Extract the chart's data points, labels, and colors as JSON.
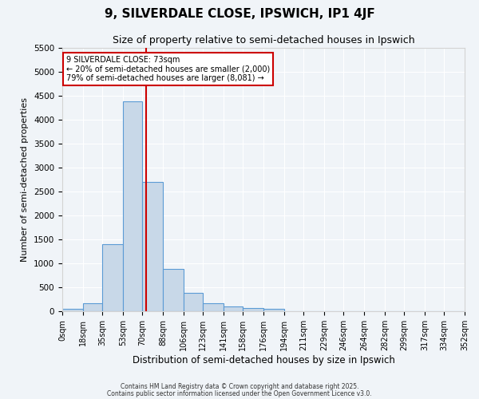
{
  "title1": "9, SILVERDALE CLOSE, IPSWICH, IP1 4JF",
  "title2": "Size of property relative to semi-detached houses in Ipswich",
  "xlabel": "Distribution of semi-detached houses by size in Ipswich",
  "ylabel": "Number of semi-detached properties",
  "bar_values": [
    50,
    160,
    1400,
    4380,
    2700,
    880,
    390,
    170,
    100,
    70,
    50,
    0,
    0,
    0,
    0,
    0,
    0,
    0,
    0,
    0
  ],
  "bin_edges": [
    0,
    18,
    35,
    53,
    70,
    88,
    106,
    123,
    141,
    158,
    176,
    194,
    211,
    229,
    246,
    264,
    282,
    299,
    317,
    334,
    352
  ],
  "tick_labels": [
    "0sqm",
    "18sqm",
    "35sqm",
    "53sqm",
    "70sqm",
    "88sqm",
    "106sqm",
    "123sqm",
    "141sqm",
    "158sqm",
    "176sqm",
    "194sqm",
    "211sqm",
    "229sqm",
    "246sqm",
    "264sqm",
    "282sqm",
    "299sqm",
    "317sqm",
    "334sqm",
    "352sqm"
  ],
  "property_size": 73,
  "bar_color": "#c8d8e8",
  "bar_edge_color": "#5b9bd5",
  "red_line_color": "#cc0000",
  "background_color": "#f0f4f8",
  "grid_color": "#ffffff",
  "ylim": [
    0,
    5500
  ],
  "yticks": [
    0,
    500,
    1000,
    1500,
    2000,
    2500,
    3000,
    3500,
    4000,
    4500,
    5000,
    5500
  ],
  "annotation_text": "9 SILVERDALE CLOSE: 73sqm\n← 20% of semi-detached houses are smaller (2,000)\n79% of semi-detached houses are larger (8,081) →",
  "box_color": "#ffffff",
  "box_edge_color": "#cc0000",
  "title1_fontsize": 11,
  "title2_fontsize": 9,
  "footer_line1": "Contains HM Land Registry data © Crown copyright and database right 2025.",
  "footer_line2": "Contains public sector information licensed under the Open Government Licence v3.0."
}
